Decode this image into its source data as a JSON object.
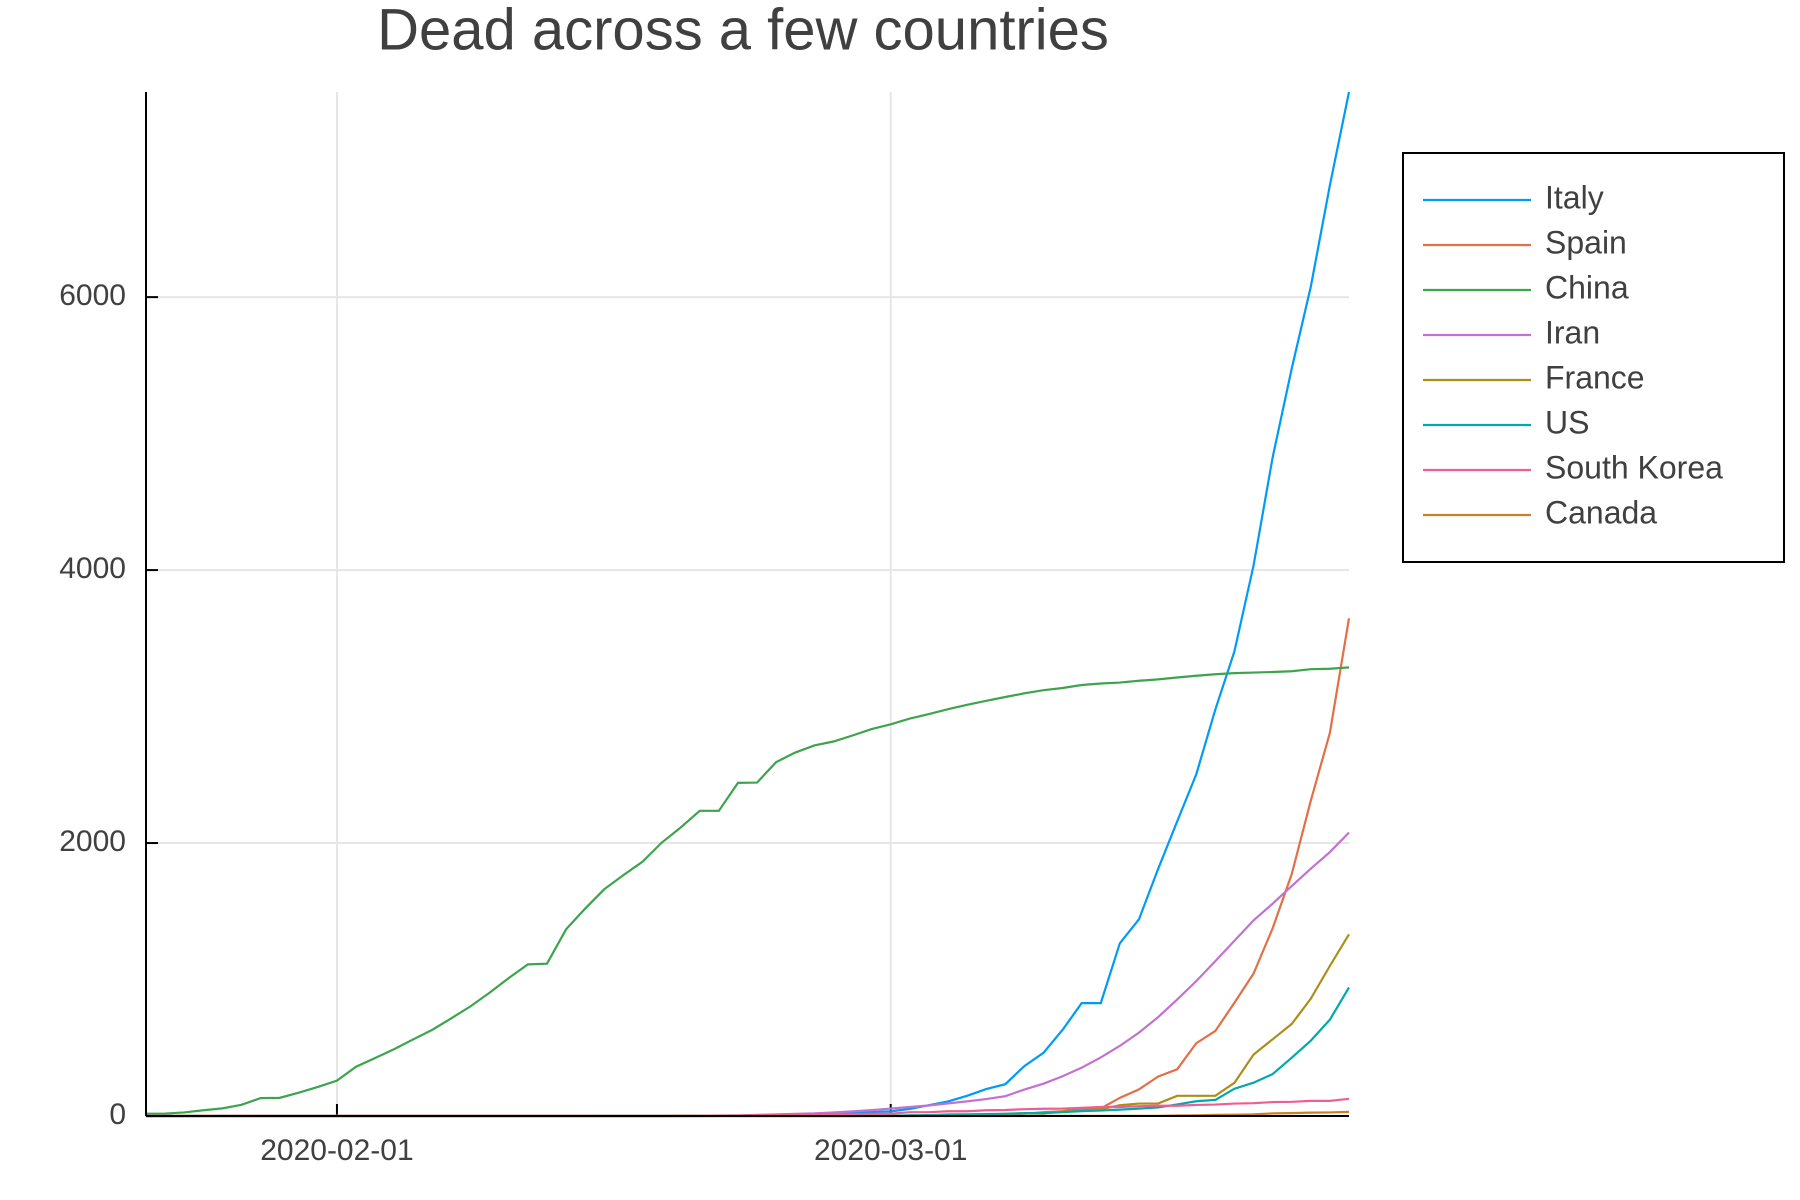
{
  "chart_data": {
    "type": "line",
    "title": "Dead across a few countries",
    "x": [
      "2020-01-22",
      "2020-01-23",
      "2020-01-24",
      "2020-01-25",
      "2020-01-26",
      "2020-01-27",
      "2020-01-28",
      "2020-01-29",
      "2020-01-30",
      "2020-01-31",
      "2020-02-01",
      "2020-02-02",
      "2020-02-03",
      "2020-02-04",
      "2020-02-05",
      "2020-02-06",
      "2020-02-07",
      "2020-02-08",
      "2020-02-09",
      "2020-02-10",
      "2020-02-11",
      "2020-02-12",
      "2020-02-13",
      "2020-02-14",
      "2020-02-15",
      "2020-02-16",
      "2020-02-17",
      "2020-02-18",
      "2020-02-19",
      "2020-02-20",
      "2020-02-21",
      "2020-02-22",
      "2020-02-23",
      "2020-02-24",
      "2020-02-25",
      "2020-02-26",
      "2020-02-27",
      "2020-02-28",
      "2020-02-29",
      "2020-03-01",
      "2020-03-02",
      "2020-03-03",
      "2020-03-04",
      "2020-03-05",
      "2020-03-06",
      "2020-03-07",
      "2020-03-08",
      "2020-03-09",
      "2020-03-10",
      "2020-03-11",
      "2020-03-12",
      "2020-03-13",
      "2020-03-14",
      "2020-03-15",
      "2020-03-16",
      "2020-03-17",
      "2020-03-18",
      "2020-03-19",
      "2020-03-20",
      "2020-03-21",
      "2020-03-22",
      "2020-03-23",
      "2020-03-24",
      "2020-03-25"
    ],
    "xlim": [
      "2020-01-22",
      "2020-03-25"
    ],
    "xticks": [
      "2020-02-01",
      "2020-03-01"
    ],
    "ylim": [
      0,
      7503
    ],
    "yticks": [
      0,
      2000,
      4000,
      6000
    ],
    "grid": true,
    "legend": "outer right",
    "series": [
      {
        "name": "Italy",
        "color": "#009af9",
        "values": [
          0,
          0,
          0,
          0,
          0,
          0,
          0,
          0,
          0,
          0,
          0,
          0,
          0,
          0,
          0,
          0,
          0,
          0,
          0,
          0,
          0,
          0,
          0,
          0,
          0,
          0,
          0,
          0,
          0,
          0,
          1,
          2,
          3,
          7,
          10,
          12,
          17,
          21,
          29,
          34,
          52,
          79,
          107,
          148,
          197,
          233,
          366,
          463,
          631,
          827,
          827,
          1266,
          1441,
          1809,
          2158,
          2503,
          2978,
          3405,
          4032,
          4825,
          5476,
          6077,
          6820,
          7503
        ]
      },
      {
        "name": "Spain",
        "color": "#e26f46",
        "values": [
          0,
          0,
          0,
          0,
          0,
          0,
          0,
          0,
          0,
          0,
          0,
          0,
          0,
          0,
          0,
          0,
          0,
          0,
          0,
          0,
          0,
          0,
          0,
          0,
          0,
          0,
          0,
          0,
          0,
          0,
          0,
          0,
          0,
          0,
          0,
          0,
          0,
          0,
          0,
          0,
          0,
          1,
          2,
          3,
          5,
          10,
          17,
          28,
          35,
          54,
          55,
          133,
          195,
          289,
          342,
          533,
          623,
          830,
          1043,
          1375,
          1772,
          2311,
          2808,
          3647
        ]
      },
      {
        "name": "China",
        "color": "#3da44d",
        "values": [
          17,
          18,
          26,
          42,
          56,
          82,
          131,
          133,
          171,
          213,
          259,
          361,
          425,
          490,
          562,
          632,
          717,
          804,
          904,
          1011,
          1111,
          1116,
          1368,
          1520,
          1662,
          1765,
          1863,
          2002,
          2114,
          2236,
          2236,
          2441,
          2443,
          2593,
          2663,
          2715,
          2744,
          2788,
          2835,
          2870,
          2912,
          2945,
          2981,
          3013,
          3042,
          3070,
          3097,
          3120,
          3136,
          3158,
          3169,
          3176,
          3189,
          3199,
          3213,
          3226,
          3237,
          3245,
          3249,
          3253,
          3259,
          3274,
          3277,
          3287
        ]
      },
      {
        "name": "Iran",
        "color": "#c271d2",
        "values": [
          0,
          0,
          0,
          0,
          0,
          0,
          0,
          0,
          0,
          0,
          0,
          0,
          0,
          0,
          0,
          0,
          0,
          0,
          0,
          0,
          0,
          0,
          0,
          0,
          0,
          0,
          0,
          0,
          2,
          2,
          4,
          5,
          8,
          12,
          16,
          19,
          26,
          34,
          43,
          54,
          66,
          77,
          92,
          107,
          124,
          145,
          194,
          237,
          291,
          354,
          429,
          514,
          611,
          724,
          853,
          988,
          1135,
          1284,
          1433,
          1556,
          1685,
          1812,
          1934,
          2077
        ]
      },
      {
        "name": "France",
        "color": "#ac8e18",
        "values": [
          0,
          0,
          0,
          0,
          0,
          0,
          0,
          0,
          0,
          0,
          0,
          0,
          0,
          0,
          0,
          0,
          0,
          0,
          0,
          0,
          0,
          0,
          0,
          0,
          1,
          1,
          1,
          1,
          1,
          1,
          1,
          1,
          1,
          1,
          1,
          2,
          2,
          2,
          2,
          2,
          3,
          4,
          4,
          6,
          9,
          11,
          19,
          19,
          33,
          48,
          48,
          79,
          91,
          91,
          148,
          148,
          148,
          243,
          450,
          562,
          674,
          860,
          1100,
          1331
        ]
      },
      {
        "name": "US",
        "color": "#00a9ad",
        "values": [
          0,
          0,
          0,
          0,
          0,
          0,
          0,
          0,
          0,
          0,
          0,
          0,
          0,
          0,
          0,
          0,
          0,
          0,
          0,
          0,
          0,
          0,
          0,
          0,
          0,
          0,
          0,
          0,
          0,
          0,
          0,
          0,
          0,
          0,
          0,
          0,
          0,
          0,
          1,
          1,
          6,
          7,
          11,
          12,
          14,
          17,
          21,
          22,
          28,
          36,
          40,
          47,
          54,
          63,
          85,
          108,
          118,
          200,
          244,
          307,
          427,
          552,
          706,
          942
        ]
      },
      {
        "name": "South Korea",
        "color": "#ed5e93",
        "values": [
          0,
          0,
          0,
          0,
          0,
          0,
          0,
          0,
          0,
          0,
          0,
          0,
          0,
          0,
          0,
          0,
          0,
          0,
          0,
          0,
          0,
          0,
          0,
          0,
          0,
          0,
          0,
          0,
          0,
          1,
          2,
          2,
          6,
          8,
          10,
          12,
          13,
          13,
          16,
          17,
          28,
          28,
          35,
          35,
          42,
          44,
          50,
          53,
          54,
          60,
          66,
          66,
          72,
          75,
          75,
          81,
          84,
          91,
          94,
          102,
          104,
          111,
          111,
          126
        ]
      },
      {
        "name": "Canada",
        "color": "#c68225",
        "values": [
          0,
          0,
          0,
          0,
          0,
          0,
          0,
          0,
          0,
          0,
          0,
          0,
          0,
          0,
          0,
          0,
          0,
          0,
          0,
          0,
          0,
          0,
          0,
          0,
          0,
          0,
          0,
          0,
          0,
          0,
          0,
          0,
          0,
          0,
          0,
          0,
          0,
          0,
          0,
          0,
          0,
          0,
          0,
          0,
          0,
          0,
          0,
          1,
          1,
          1,
          1,
          1,
          1,
          1,
          4,
          5,
          8,
          9,
          12,
          19,
          21,
          25,
          26,
          30
        ]
      }
    ]
  }
}
